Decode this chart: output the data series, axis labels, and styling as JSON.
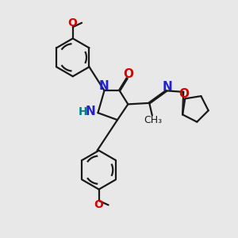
{
  "bg_color": "#e8e8e8",
  "bond_color": "#1a1a1a",
  "n_color": "#2222cc",
  "o_color": "#dd0000",
  "h_color": "#008080",
  "lw": 1.6,
  "figsize": [
    3.0,
    3.0
  ],
  "dpi": 100,
  "xlim": [
    0,
    10
  ],
  "ylim": [
    0,
    10
  ]
}
